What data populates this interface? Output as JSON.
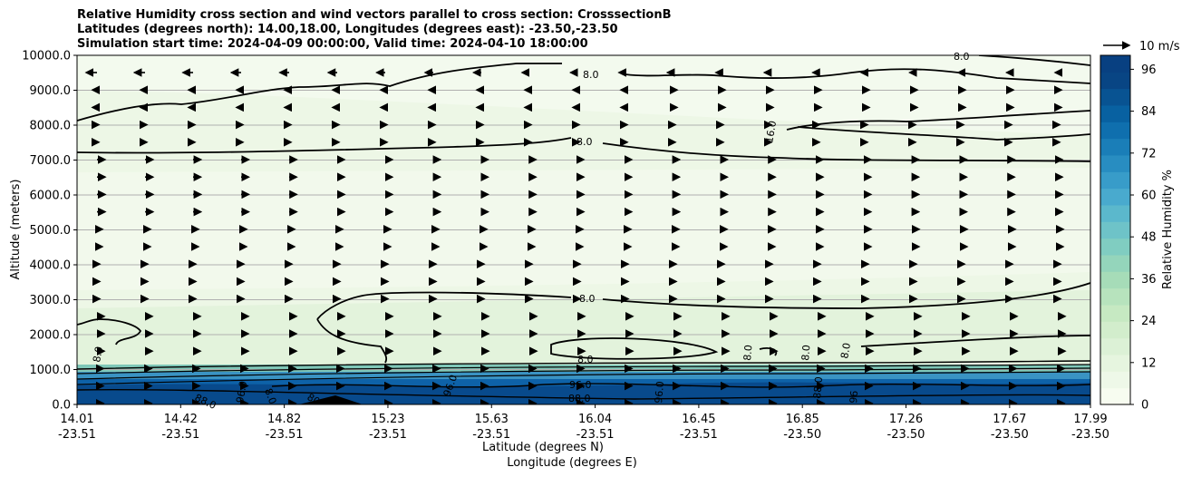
{
  "title_lines": [
    "Relative Humidity cross section and wind vectors parallel to cross section: CrosssectionB",
    "Latitudes (degrees north): 14.00,18.00, Longitudes (degrees east): -23.50,-23.50",
    "Simulation start time: 2024-04-09 00:00:00, Valid time: 2024-04-10 18:00:00"
  ],
  "chart_data": {
    "type": "contour",
    "title": "Relative Humidity cross section and wind vectors parallel to cross section: CrosssectionB",
    "ylabel": "Altitude (meters)",
    "xlabel_lines": [
      "Latitude (degrees N)",
      "Longitude (degrees E)"
    ],
    "ylim": [
      0,
      10000
    ],
    "y_ticks": [
      "0.0",
      "1000.0",
      "2000.0",
      "3000.0",
      "4000.0",
      "5000.0",
      "6000.0",
      "7000.0",
      "8000.0",
      "9000.0",
      "10000.0"
    ],
    "x_ticks": [
      {
        "lat": "14.01",
        "lon": "-23.51"
      },
      {
        "lat": "14.42",
        "lon": "-23.51"
      },
      {
        "lat": "14.82",
        "lon": "-23.51"
      },
      {
        "lat": "15.23",
        "lon": "-23.51"
      },
      {
        "lat": "15.63",
        "lon": "-23.51"
      },
      {
        "lat": "16.04",
        "lon": "-23.51"
      },
      {
        "lat": "16.45",
        "lon": "-23.51"
      },
      {
        "lat": "16.85",
        "lon": "-23.50"
      },
      {
        "lat": "17.26",
        "lon": "-23.50"
      },
      {
        "lat": "17.67",
        "lon": "-23.50"
      },
      {
        "lat": "17.99",
        "lon": "-23.50"
      }
    ],
    "grid": "horizontal",
    "colorbar": {
      "label": "Relative Humidity %",
      "ticks": [
        "0",
        "12",
        "24",
        "36",
        "48",
        "60",
        "72",
        "84",
        "96"
      ],
      "range": [
        0,
        100
      ],
      "colormap": "GnBu"
    },
    "quiver_key": "10 m/s",
    "contour_labels": [
      "8.0",
      "8.0",
      "8.0",
      "16.0",
      "8.0",
      "8.0",
      "8.0",
      "8.0",
      "8.0",
      "8.0",
      "88.0",
      "96.0",
      "88.0",
      "96.0",
      "80",
      "96.0",
      "96",
      "8.0",
      "96.0",
      "88.0"
    ]
  }
}
